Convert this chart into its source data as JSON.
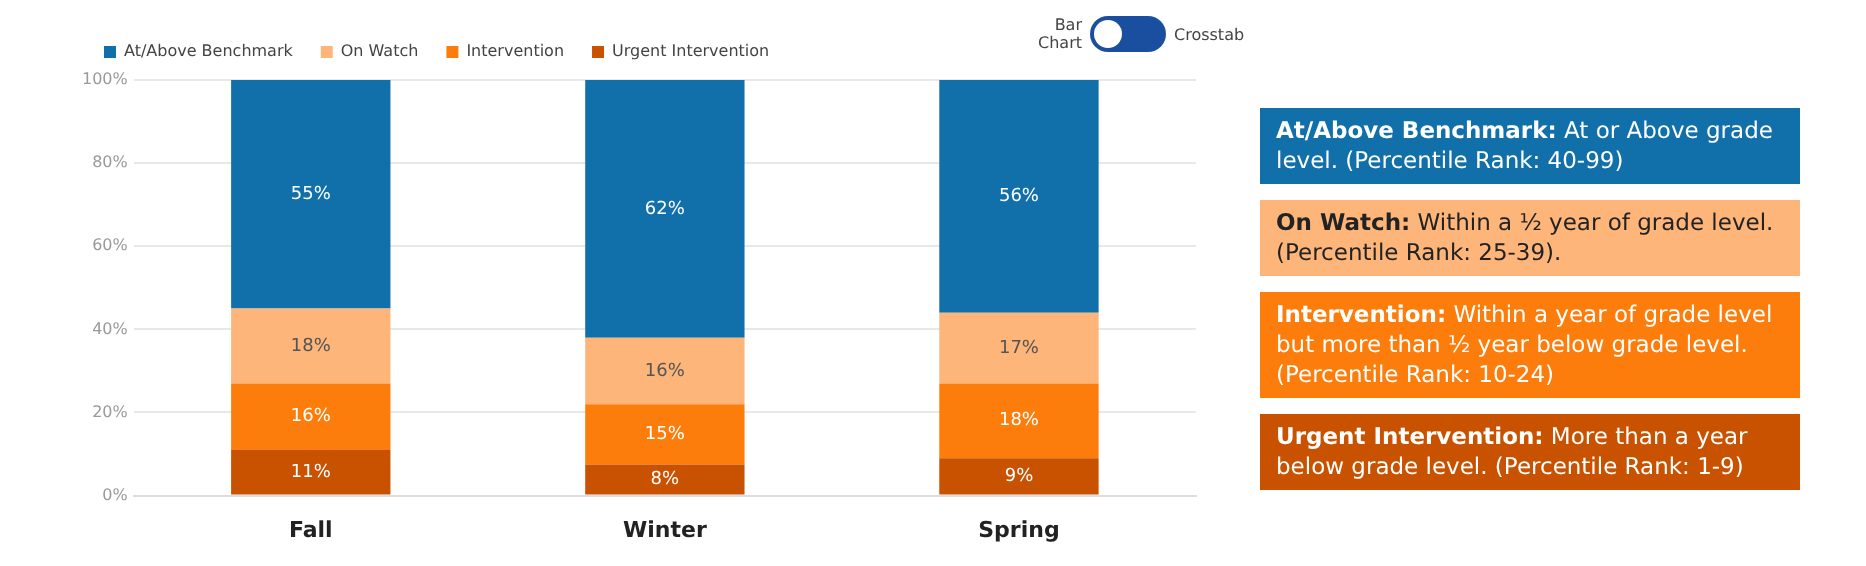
{
  "chart_data": {
    "type": "bar",
    "stacked": true,
    "categories": [
      "Fall",
      "Winter",
      "Spring"
    ],
    "series": [
      {
        "name": "Urgent Intervention",
        "color": "#c85200",
        "values": [
          11,
          7.5,
          9
        ],
        "value_labels": [
          "11%",
          "8%",
          "9%"
        ]
      },
      {
        "name": "Intervention",
        "color": "#fc7d0b",
        "values": [
          16,
          14.5,
          18
        ],
        "value_labels": [
          "16%",
          "15%",
          "18%"
        ]
      },
      {
        "name": "On Watch",
        "color": "#fdb57a",
        "values": [
          18,
          16,
          17
        ],
        "value_labels": [
          "18%",
          "16%",
          "17%"
        ]
      },
      {
        "name": "At/Above Benchmark",
        "color": "#1170aa",
        "values": [
          55,
          62,
          56
        ],
        "value_labels": [
          "55%",
          "62%",
          "56%"
        ]
      }
    ],
    "ylim": [
      0,
      100
    ],
    "yticks": [
      {
        "value": 0,
        "label": "0%"
      },
      {
        "value": 20,
        "label": "20%"
      },
      {
        "value": 40,
        "label": "40%"
      },
      {
        "value": 60,
        "label": "60%"
      },
      {
        "value": 80,
        "label": "80%"
      },
      {
        "value": 100,
        "label": "100%"
      }
    ],
    "grid": "y",
    "legend": "top left",
    "annotations": [
      "At/Above Benchmark: At or Above grade level. (Percentile Rank: 40-99)",
      "On Watch: Within a ½ year of grade level.  (Percentile Rank: 25-39).",
      "Intervention: Within a year of grade level but more than ½ year below grade level. (Percentile Rank: 10-24)",
      "Urgent Intervention: More than a year below grade level. (Percentile Rank: 1-9)",
      "Bar Chart",
      "Crosstab"
    ]
  }
}
